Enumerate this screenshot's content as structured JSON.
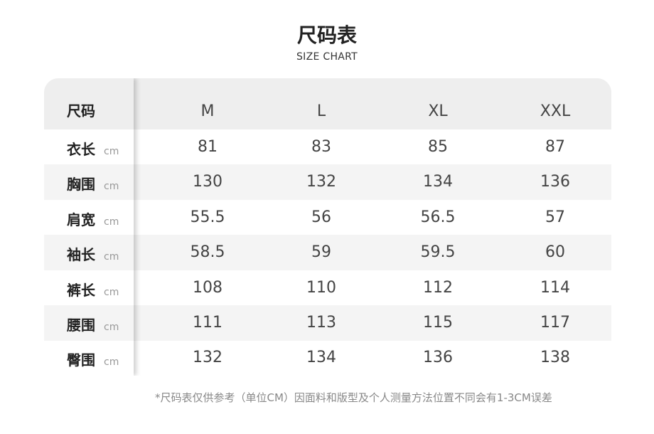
{
  "title": "尺码表",
  "subtitle": "SIZE CHART",
  "table": {
    "corner_label": "尺码",
    "sizes": [
      "M",
      "L",
      "XL",
      "XXL"
    ],
    "rows": [
      {
        "label": "衣长",
        "unit": "cm",
        "values": [
          "81",
          "83",
          "85",
          "87"
        ]
      },
      {
        "label": "胸围",
        "unit": "cm",
        "values": [
          "130",
          "132",
          "134",
          "136"
        ]
      },
      {
        "label": "肩宽",
        "unit": "cm",
        "values": [
          "55.5",
          "56",
          "56.5",
          "57"
        ]
      },
      {
        "label": "袖长",
        "unit": "cm",
        "values": [
          "58.5",
          "59",
          "59.5",
          "60"
        ]
      },
      {
        "label": "裤长",
        "unit": "cm",
        "values": [
          "108",
          "110",
          "112",
          "114"
        ]
      },
      {
        "label": "腰围",
        "unit": "cm",
        "values": [
          "111",
          "113",
          "115",
          "117"
        ]
      },
      {
        "label": "臀围",
        "unit": "cm",
        "values": [
          "132",
          "134",
          "136",
          "138"
        ]
      }
    ]
  },
  "note": "*尺码表仅供参考（单位CM）因面料和版型及个人测量方法位置不同会有1-3CM误差"
}
